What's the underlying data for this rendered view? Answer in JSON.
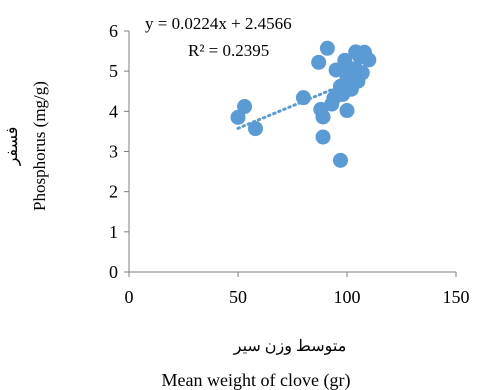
{
  "chart_data": {
    "type": "scatter",
    "xlabel_fa": "متوسط وزن سیر",
    "xlabel_en": "Mean weight of clove (gr)",
    "ylabel_fa": "فسفر",
    "ylabel_en": "Phosphorus (mg/g)",
    "equation": "y = 0.0224x + 2.4566",
    "r_squared": "R² = 0.2395",
    "xlim": [
      0,
      150
    ],
    "ylim": [
      0,
      6
    ],
    "x_ticks": [
      0,
      50,
      100,
      150
    ],
    "y_ticks": [
      0,
      1,
      2,
      3,
      4,
      5,
      6
    ],
    "grid": false,
    "trendline": {
      "slope": 0.0224,
      "intercept": 2.4566,
      "x_range": [
        50,
        110
      ]
    },
    "marker_color": "#5B9BD5",
    "trendline_color": "#5B9BD5",
    "points": [
      {
        "x": 50,
        "y": 3.85
      },
      {
        "x": 53,
        "y": 4.12
      },
      {
        "x": 58,
        "y": 3.57
      },
      {
        "x": 80,
        "y": 4.34
      },
      {
        "x": 87,
        "y": 5.22
      },
      {
        "x": 88,
        "y": 4.05
      },
      {
        "x": 89,
        "y": 3.86
      },
      {
        "x": 89,
        "y": 3.36
      },
      {
        "x": 91,
        "y": 5.57
      },
      {
        "x": 93,
        "y": 4.18
      },
      {
        "x": 94,
        "y": 4.33
      },
      {
        "x": 95,
        "y": 5.03
      },
      {
        "x": 96,
        "y": 4.45
      },
      {
        "x": 97,
        "y": 4.62
      },
      {
        "x": 97,
        "y": 2.78
      },
      {
        "x": 98,
        "y": 4.42
      },
      {
        "x": 99,
        "y": 5.27
      },
      {
        "x": 99,
        "y": 4.58
      },
      {
        "x": 100,
        "y": 4.02
      },
      {
        "x": 100,
        "y": 4.83
      },
      {
        "x": 101,
        "y": 5.08
      },
      {
        "x": 102,
        "y": 4.72
      },
      {
        "x": 102,
        "y": 4.55
      },
      {
        "x": 103,
        "y": 4.92
      },
      {
        "x": 104,
        "y": 5.48
      },
      {
        "x": 104,
        "y": 5.05
      },
      {
        "x": 105,
        "y": 4.75
      },
      {
        "x": 106,
        "y": 5.35
      },
      {
        "x": 108,
        "y": 5.47
      },
      {
        "x": 110,
        "y": 5.28
      },
      {
        "x": 107,
        "y": 4.96
      }
    ]
  }
}
